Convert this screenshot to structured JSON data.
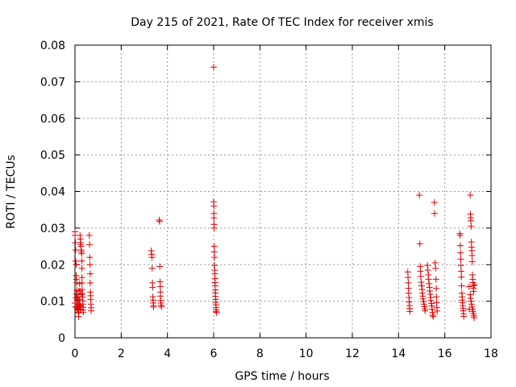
{
  "chart_data": {
    "type": "scatter",
    "title": "Day 215 of 2021, Rate Of TEC Index for receiver xmis",
    "xlabel": "GPS time / hours",
    "ylabel": "ROTI / TECUs",
    "xlim": [
      0,
      18
    ],
    "ylim": [
      0,
      0.08
    ],
    "xticks": [
      0,
      2,
      4,
      6,
      8,
      10,
      12,
      14,
      16,
      18
    ],
    "yticks": [
      0,
      0.01,
      0.02,
      0.03,
      0.04,
      0.05,
      0.06,
      0.07,
      0.08
    ],
    "xtick_labels": [
      "0",
      "2",
      "4",
      "6",
      "8",
      "10",
      "12",
      "14",
      "16",
      "18"
    ],
    "ytick_labels": [
      "0",
      "0.01",
      "0.02",
      "0.03",
      "0.04",
      "0.05",
      "0.06",
      "0.07",
      "0.08"
    ],
    "grid": true,
    "marker": "+",
    "marker_color": "#e00000",
    "series": [
      {
        "name": "",
        "points": [
          [
            0.0,
            0.029
          ],
          [
            0.0,
            0.028
          ],
          [
            0.02,
            0.026
          ],
          [
            0.03,
            0.024
          ],
          [
            0.03,
            0.021
          ],
          [
            0.05,
            0.02
          ],
          [
            0.05,
            0.017
          ],
          [
            0.06,
            0.016
          ],
          [
            0.07,
            0.015
          ],
          [
            0.08,
            0.013
          ],
          [
            0.08,
            0.012
          ],
          [
            0.09,
            0.011
          ],
          [
            0.1,
            0.0105
          ],
          [
            0.1,
            0.01
          ],
          [
            0.11,
            0.0095
          ],
          [
            0.12,
            0.009
          ],
          [
            0.13,
            0.0085
          ],
          [
            0.14,
            0.008
          ],
          [
            0.15,
            0.0075
          ],
          [
            0.16,
            0.007
          ],
          [
            0.0,
            0.0095
          ],
          [
            0.02,
            0.0085
          ],
          [
            0.04,
            0.011
          ],
          [
            0.06,
            0.012
          ],
          [
            0.08,
            0.0082
          ],
          [
            0.1,
            0.0078
          ],
          [
            0.12,
            0.0102
          ],
          [
            0.14,
            0.0112
          ],
          [
            0.15,
            0.0068
          ],
          [
            0.16,
            0.0058
          ],
          [
            0.17,
            0.0128
          ],
          [
            0.18,
            0.0092
          ],
          [
            0.19,
            0.0088
          ],
          [
            0.2,
            0.0105
          ],
          [
            0.2,
            0.0148
          ],
          [
            0.22,
            0.028
          ],
          [
            0.23,
            0.027
          ],
          [
            0.24,
            0.026
          ],
          [
            0.25,
            0.0255
          ],
          [
            0.26,
            0.025
          ],
          [
            0.27,
            0.024
          ],
          [
            0.28,
            0.0235
          ],
          [
            0.29,
            0.023
          ],
          [
            0.3,
            0.021
          ],
          [
            0.3,
            0.019
          ],
          [
            0.3,
            0.0165
          ],
          [
            0.3,
            0.015
          ],
          [
            0.31,
            0.0132
          ],
          [
            0.32,
            0.0121
          ],
          [
            0.33,
            0.0112
          ],
          [
            0.34,
            0.0101
          ],
          [
            0.34,
            0.0092
          ],
          [
            0.35,
            0.0083
          ],
          [
            0.35,
            0.0076
          ],
          [
            0.36,
            0.007
          ],
          [
            0.24,
            0.0078
          ],
          [
            0.26,
            0.0086
          ],
          [
            0.28,
            0.0118
          ],
          [
            0.22,
            0.0128
          ],
          [
            0.62,
            0.028
          ],
          [
            0.63,
            0.0255
          ],
          [
            0.64,
            0.022
          ],
          [
            0.65,
            0.02
          ],
          [
            0.66,
            0.0175
          ],
          [
            0.66,
            0.015
          ],
          [
            0.67,
            0.0125
          ],
          [
            0.68,
            0.0115
          ],
          [
            0.68,
            0.0105
          ],
          [
            0.69,
            0.0092
          ],
          [
            0.7,
            0.0082
          ],
          [
            0.7,
            0.0074
          ],
          [
            3.3,
            0.0238
          ],
          [
            3.32,
            0.0228
          ],
          [
            3.33,
            0.022
          ],
          [
            3.34,
            0.019
          ],
          [
            3.35,
            0.015
          ],
          [
            3.36,
            0.0138
          ],
          [
            3.37,
            0.0112
          ],
          [
            3.38,
            0.0103
          ],
          [
            3.39,
            0.0095
          ],
          [
            3.4,
            0.0088
          ],
          [
            3.4,
            0.0084
          ],
          [
            3.65,
            0.0322
          ],
          [
            3.66,
            0.0318
          ],
          [
            3.67,
            0.0195
          ],
          [
            3.68,
            0.0153
          ],
          [
            3.69,
            0.014
          ],
          [
            3.7,
            0.0125
          ],
          [
            3.7,
            0.0114
          ],
          [
            3.71,
            0.0102
          ],
          [
            3.72,
            0.0095
          ],
          [
            3.73,
            0.0089
          ],
          [
            3.74,
            0.0085
          ],
          [
            6.0,
            0.074
          ],
          [
            6.0,
            0.0372
          ],
          [
            6.01,
            0.036
          ],
          [
            6.01,
            0.034
          ],
          [
            6.01,
            0.0328
          ],
          [
            6.02,
            0.031
          ],
          [
            6.02,
            0.03
          ],
          [
            6.03,
            0.025
          ],
          [
            6.03,
            0.0235
          ],
          [
            6.04,
            0.022
          ],
          [
            6.04,
            0.0198
          ],
          [
            6.05,
            0.0185
          ],
          [
            6.05,
            0.0175
          ],
          [
            6.06,
            0.0162
          ],
          [
            6.06,
            0.0151
          ],
          [
            6.07,
            0.0142
          ],
          [
            6.07,
            0.0131
          ],
          [
            6.08,
            0.0122
          ],
          [
            6.08,
            0.0113
          ],
          [
            6.09,
            0.0105
          ],
          [
            6.09,
            0.0097
          ],
          [
            6.1,
            0.009
          ],
          [
            6.1,
            0.0083
          ],
          [
            6.11,
            0.0077
          ],
          [
            6.11,
            0.0072
          ],
          [
            6.12,
            0.0069
          ],
          [
            14.4,
            0.018
          ],
          [
            14.41,
            0.0165
          ],
          [
            14.42,
            0.015
          ],
          [
            14.43,
            0.0135
          ],
          [
            14.44,
            0.0122
          ],
          [
            14.45,
            0.011
          ],
          [
            14.46,
            0.0098
          ],
          [
            14.47,
            0.0088
          ],
          [
            14.48,
            0.008
          ],
          [
            14.49,
            0.0072
          ],
          [
            14.9,
            0.039
          ],
          [
            14.92,
            0.0257
          ],
          [
            14.94,
            0.0195
          ],
          [
            14.95,
            0.0182
          ],
          [
            14.96,
            0.0168
          ],
          [
            14.98,
            0.0152
          ],
          [
            15.0,
            0.0142
          ],
          [
            15.02,
            0.0132
          ],
          [
            15.03,
            0.0122
          ],
          [
            15.05,
            0.0114
          ],
          [
            15.06,
            0.0106
          ],
          [
            15.08,
            0.0099
          ],
          [
            15.1,
            0.0092
          ],
          [
            15.12,
            0.0085
          ],
          [
            15.14,
            0.0079
          ],
          [
            15.15,
            0.0074
          ],
          [
            15.25,
            0.0198
          ],
          [
            15.27,
            0.0185
          ],
          [
            15.29,
            0.0172
          ],
          [
            15.3,
            0.016
          ],
          [
            15.32,
            0.0148
          ],
          [
            15.34,
            0.0138
          ],
          [
            15.35,
            0.0128
          ],
          [
            15.37,
            0.0119
          ],
          [
            15.39,
            0.011
          ],
          [
            15.4,
            0.0102
          ],
          [
            15.42,
            0.0094
          ],
          [
            15.44,
            0.0087
          ],
          [
            15.45,
            0.0078
          ],
          [
            15.47,
            0.0069
          ],
          [
            15.48,
            0.0062
          ],
          [
            15.5,
            0.0058
          ],
          [
            15.55,
            0.037
          ],
          [
            15.56,
            0.034
          ],
          [
            15.58,
            0.0205
          ],
          [
            15.6,
            0.019
          ],
          [
            15.62,
            0.016
          ],
          [
            15.63,
            0.0135
          ],
          [
            15.64,
            0.0112
          ],
          [
            15.65,
            0.0096
          ],
          [
            15.66,
            0.0083
          ],
          [
            15.67,
            0.0073
          ],
          [
            16.65,
            0.0285
          ],
          [
            16.66,
            0.028
          ],
          [
            16.67,
            0.0252
          ],
          [
            16.68,
            0.0232
          ],
          [
            16.69,
            0.0215
          ],
          [
            16.7,
            0.0198
          ],
          [
            16.71,
            0.0182
          ],
          [
            16.72,
            0.0166
          ],
          [
            16.73,
            0.0142
          ],
          [
            16.74,
            0.0122
          ],
          [
            16.75,
            0.0112
          ],
          [
            16.76,
            0.0103
          ],
          [
            16.77,
            0.0096
          ],
          [
            16.78,
            0.0088
          ],
          [
            16.79,
            0.0081
          ],
          [
            16.8,
            0.0074
          ],
          [
            16.81,
            0.0066
          ],
          [
            16.82,
            0.0058
          ],
          [
            17.1,
            0.039
          ],
          [
            17.11,
            0.0338
          ],
          [
            17.12,
            0.0328
          ],
          [
            17.13,
            0.032
          ],
          [
            17.14,
            0.0305
          ],
          [
            17.15,
            0.0262
          ],
          [
            17.16,
            0.0248
          ],
          [
            17.17,
            0.0238
          ],
          [
            17.18,
            0.0225
          ],
          [
            17.19,
            0.0208
          ],
          [
            17.2,
            0.0172
          ],
          [
            17.21,
            0.016
          ],
          [
            17.22,
            0.0151
          ],
          [
            17.23,
            0.0143
          ],
          [
            17.24,
            0.0135
          ],
          [
            17.25,
            0.0127
          ],
          [
            17.1,
            0.0118
          ],
          [
            17.12,
            0.0108
          ],
          [
            17.14,
            0.01
          ],
          [
            17.16,
            0.0092
          ],
          [
            17.18,
            0.0084
          ],
          [
            17.2,
            0.0078
          ],
          [
            17.22,
            0.0072
          ],
          [
            17.24,
            0.0066
          ],
          [
            17.26,
            0.006
          ],
          [
            17.27,
            0.0055
          ],
          [
            17.05,
            0.014
          ],
          [
            17.28,
            0.0145
          ],
          [
            17.06,
            0.0078
          ]
        ]
      }
    ]
  }
}
